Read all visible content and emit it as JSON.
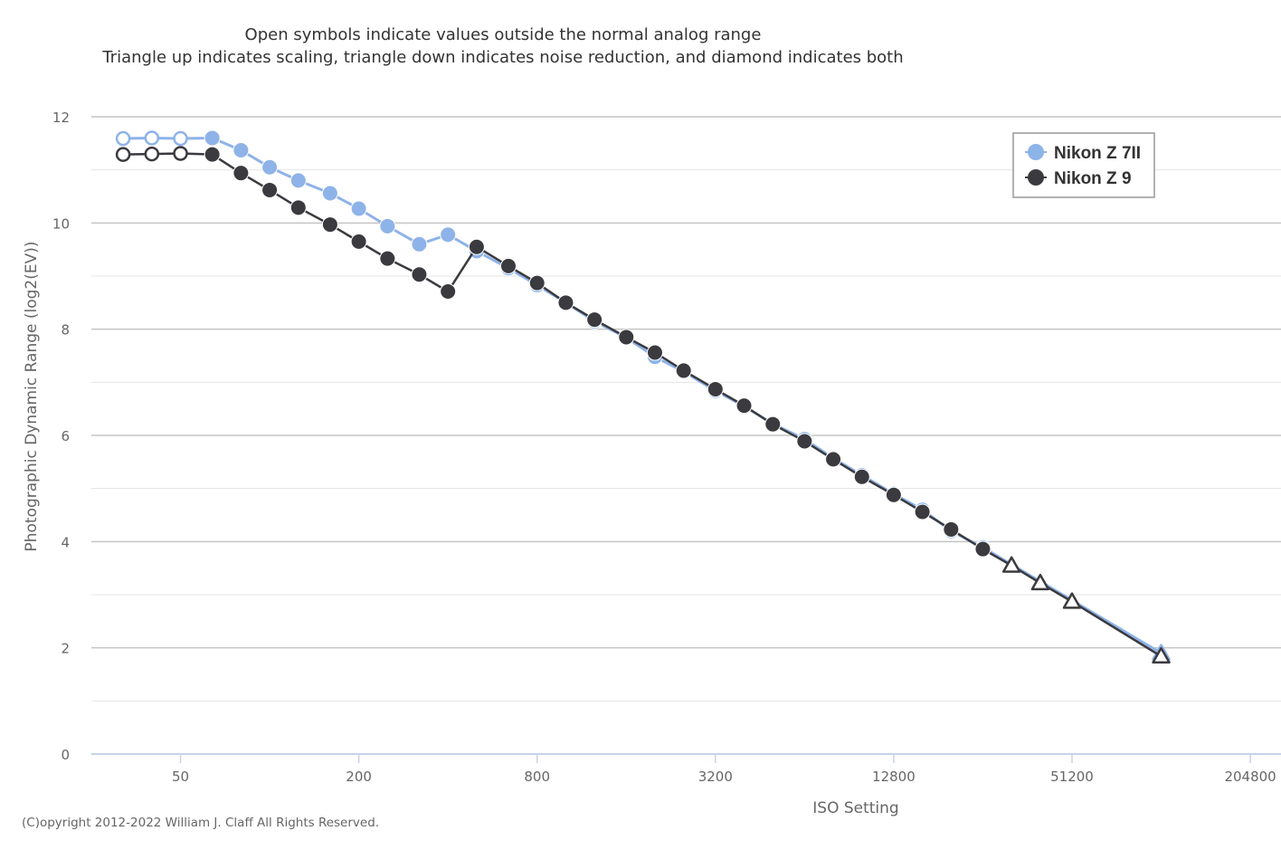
{
  "chart_data": {
    "type": "line",
    "subtitle_lines": [
      "Open symbols indicate values outside the normal analog range",
      "Triangle up indicates scaling, triangle down indicates noise reduction, and diamond indicates both"
    ],
    "xlabel": "ISO Setting",
    "ylabel": "Photographic Dynamic Range (log2(EV))",
    "x_scale": "log2",
    "xlim": [
      25,
      260000
    ],
    "ylim": [
      0,
      12
    ],
    "x_ticks": [
      50,
      200,
      800,
      3200,
      12800,
      51200,
      204800
    ],
    "x_tick_labels": [
      "50",
      "200",
      "800",
      "3200",
      "12800",
      "51200",
      "204800"
    ],
    "y_ticks": [
      0,
      2,
      4,
      6,
      8,
      10,
      12
    ],
    "y_tick_labels": [
      "0",
      "2",
      "4",
      "6",
      "8",
      "10",
      "12"
    ],
    "grid": true,
    "legend_position": "top-right",
    "credits": "(C)opyright 2012-2022 William J. Claff All Rights Reserved.",
    "series": [
      {
        "name": "Nikon Z 7II",
        "color": "#8eb3e8",
        "points": [
          {
            "x": 32,
            "y": 11.59,
            "marker": "open-circle"
          },
          {
            "x": 40,
            "y": 11.6,
            "marker": "open-circle"
          },
          {
            "x": 50,
            "y": 11.59,
            "marker": "open-circle"
          },
          {
            "x": 64,
            "y": 11.6,
            "marker": "circle"
          },
          {
            "x": 80,
            "y": 11.37,
            "marker": "circle"
          },
          {
            "x": 100,
            "y": 11.05,
            "marker": "circle"
          },
          {
            "x": 125,
            "y": 10.8,
            "marker": "circle"
          },
          {
            "x": 160,
            "y": 10.56,
            "marker": "circle"
          },
          {
            "x": 200,
            "y": 10.27,
            "marker": "circle"
          },
          {
            "x": 250,
            "y": 9.94,
            "marker": "circle"
          },
          {
            "x": 320,
            "y": 9.6,
            "marker": "circle"
          },
          {
            "x": 400,
            "y": 9.78,
            "marker": "circle"
          },
          {
            "x": 500,
            "y": 9.47,
            "marker": "circle"
          },
          {
            "x": 640,
            "y": 9.15,
            "marker": "circle"
          },
          {
            "x": 800,
            "y": 8.83,
            "marker": "circle"
          },
          {
            "x": 1000,
            "y": 8.5,
            "marker": "circle"
          },
          {
            "x": 1250,
            "y": 8.15,
            "marker": "circle"
          },
          {
            "x": 1600,
            "y": 7.84,
            "marker": "circle"
          },
          {
            "x": 2000,
            "y": 7.48,
            "marker": "circle"
          },
          {
            "x": 2500,
            "y": 7.2,
            "marker": "circle"
          },
          {
            "x": 3200,
            "y": 6.84,
            "marker": "circle"
          },
          {
            "x": 4000,
            "y": 6.55,
            "marker": "circle"
          },
          {
            "x": 5000,
            "y": 6.22,
            "marker": "circle"
          },
          {
            "x": 6400,
            "y": 5.93,
            "marker": "circle"
          },
          {
            "x": 8000,
            "y": 5.57,
            "marker": "circle"
          },
          {
            "x": 10000,
            "y": 5.25,
            "marker": "circle"
          },
          {
            "x": 12800,
            "y": 4.9,
            "marker": "circle"
          },
          {
            "x": 16000,
            "y": 4.6,
            "marker": "circle"
          },
          {
            "x": 20000,
            "y": 4.2,
            "marker": "circle"
          },
          {
            "x": 25600,
            "y": 3.89,
            "marker": "circle"
          },
          {
            "x": 102400,
            "y": 1.9,
            "marker": "open-triangle-up"
          }
        ]
      },
      {
        "name": "Nikon Z 9",
        "color": "#3a3a3f",
        "points": [
          {
            "x": 32,
            "y": 11.29,
            "marker": "open-circle"
          },
          {
            "x": 40,
            "y": 11.3,
            "marker": "open-circle"
          },
          {
            "x": 50,
            "y": 11.31,
            "marker": "open-circle"
          },
          {
            "x": 64,
            "y": 11.29,
            "marker": "circle"
          },
          {
            "x": 80,
            "y": 10.94,
            "marker": "circle"
          },
          {
            "x": 100,
            "y": 10.62,
            "marker": "circle"
          },
          {
            "x": 125,
            "y": 10.29,
            "marker": "circle"
          },
          {
            "x": 160,
            "y": 9.97,
            "marker": "circle"
          },
          {
            "x": 200,
            "y": 9.65,
            "marker": "circle"
          },
          {
            "x": 250,
            "y": 9.33,
            "marker": "circle"
          },
          {
            "x": 320,
            "y": 9.03,
            "marker": "circle"
          },
          {
            "x": 400,
            "y": 8.71,
            "marker": "circle"
          },
          {
            "x": 500,
            "y": 9.55,
            "marker": "circle"
          },
          {
            "x": 640,
            "y": 9.19,
            "marker": "circle"
          },
          {
            "x": 800,
            "y": 8.87,
            "marker": "circle"
          },
          {
            "x": 1000,
            "y": 8.5,
            "marker": "circle"
          },
          {
            "x": 1250,
            "y": 8.18,
            "marker": "circle"
          },
          {
            "x": 1600,
            "y": 7.85,
            "marker": "circle"
          },
          {
            "x": 2000,
            "y": 7.56,
            "marker": "circle"
          },
          {
            "x": 2500,
            "y": 7.22,
            "marker": "circle"
          },
          {
            "x": 3200,
            "y": 6.87,
            "marker": "circle"
          },
          {
            "x": 4000,
            "y": 6.56,
            "marker": "circle"
          },
          {
            "x": 5000,
            "y": 6.21,
            "marker": "circle"
          },
          {
            "x": 6400,
            "y": 5.89,
            "marker": "circle"
          },
          {
            "x": 8000,
            "y": 5.55,
            "marker": "circle"
          },
          {
            "x": 10000,
            "y": 5.22,
            "marker": "circle"
          },
          {
            "x": 12800,
            "y": 4.88,
            "marker": "circle"
          },
          {
            "x": 16000,
            "y": 4.56,
            "marker": "circle"
          },
          {
            "x": 20000,
            "y": 4.23,
            "marker": "circle"
          },
          {
            "x": 25600,
            "y": 3.86,
            "marker": "circle"
          },
          {
            "x": 32000,
            "y": 3.55,
            "marker": "open-triangle-up"
          },
          {
            "x": 40000,
            "y": 3.22,
            "marker": "open-triangle-up"
          },
          {
            "x": 51200,
            "y": 2.87,
            "marker": "open-triangle-up"
          },
          {
            "x": 102400,
            "y": 1.84,
            "marker": "open-triangle-up"
          }
        ]
      }
    ]
  }
}
